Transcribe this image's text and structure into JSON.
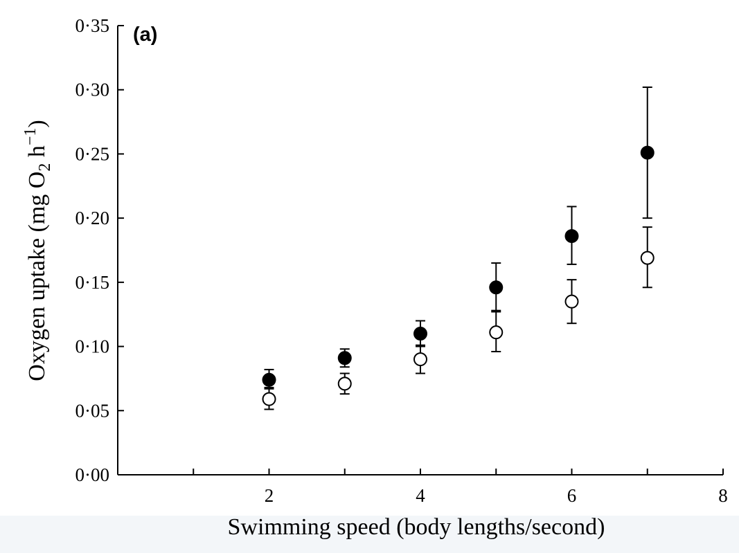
{
  "chart_data": {
    "type": "scatter",
    "panel_label": "(a)",
    "xlabel": "Swimming speed (body lengths/second)",
    "ylabel": {
      "prefix": "Oxygen uptake (mg O",
      "subscript": "2",
      "middle": " h",
      "superscript": "−1",
      "suffix": ")"
    },
    "xlim": [
      0,
      8
    ],
    "ylim": [
      0,
      0.35
    ],
    "x_ticks": [
      1,
      2,
      3,
      4,
      5,
      6,
      7,
      8
    ],
    "x_tick_labels": [
      {
        "value": 2,
        "label": "2"
      },
      {
        "value": 4,
        "label": "4"
      },
      {
        "value": 6,
        "label": "6"
      },
      {
        "value": 8,
        "label": "8"
      }
    ],
    "y_ticks": [
      {
        "value": 0.0,
        "label": "0·00"
      },
      {
        "value": 0.05,
        "label": "0·05"
      },
      {
        "value": 0.1,
        "label": "0·10"
      },
      {
        "value": 0.15,
        "label": "0·15"
      },
      {
        "value": 0.2,
        "label": "0·20"
      },
      {
        "value": 0.25,
        "label": "0·25"
      },
      {
        "value": 0.3,
        "label": "0·30"
      },
      {
        "value": 0.35,
        "label": "0·35"
      }
    ],
    "grid": false,
    "legend": "none",
    "series": [
      {
        "marker": "filled-circle",
        "color": "#000000",
        "x": [
          2,
          3,
          4,
          5,
          6,
          7
        ],
        "y": [
          0.074,
          0.091,
          0.11,
          0.146,
          0.186,
          0.251
        ],
        "err_low": [
          0.068,
          0.084,
          0.1,
          0.128,
          0.164,
          0.2
        ],
        "err_high": [
          0.082,
          0.098,
          0.12,
          0.165,
          0.209,
          0.302
        ]
      },
      {
        "marker": "open-circle",
        "color": "#000000",
        "x": [
          2,
          3,
          4,
          5,
          6,
          7
        ],
        "y": [
          0.059,
          0.071,
          0.09,
          0.111,
          0.135,
          0.169
        ],
        "err_low": [
          0.051,
          0.063,
          0.079,
          0.096,
          0.118,
          0.146
        ],
        "err_high": [
          0.067,
          0.079,
          0.101,
          0.127,
          0.152,
          0.193
        ]
      }
    ]
  }
}
